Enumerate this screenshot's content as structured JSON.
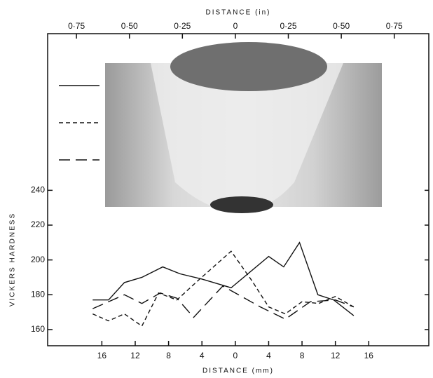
{
  "chart_data": {
    "type": "line",
    "x_label": "DISTANCE (mm)",
    "x2_label": "DISTANCE (in)",
    "y_label": "VICKERS HARDNESS",
    "xlim": [
      -22.5,
      23.2
    ],
    "xticks": [
      {
        "value": -16,
        "label": "16"
      },
      {
        "value": -12,
        "label": "12"
      },
      {
        "value": -8,
        "label": "8"
      },
      {
        "value": -4,
        "label": "4"
      },
      0,
      4,
      8,
      12,
      16
    ],
    "x2lim": [
      -0.886,
      0.913
    ],
    "x2ticks": [
      {
        "value": -0.75,
        "label": "0·75"
      },
      {
        "value": -0.5,
        "label": "0·50"
      },
      {
        "value": -0.25,
        "label": "0·25"
      },
      0,
      {
        "value": 0.25,
        "label": "0·25"
      },
      {
        "value": 0.5,
        "label": "0·50"
      },
      {
        "value": 0.75,
        "label": "0·75"
      }
    ],
    "ylim": [
      150.7,
      330
    ],
    "yticks": [
      160,
      180,
      200,
      220,
      240
    ],
    "series": [
      {
        "color": "#111111",
        "dash": "solid",
        "x": [
          -17.1,
          -15.2,
          -13.3,
          -11.2,
          -8.7,
          -6.6,
          -4.0,
          -0.5,
          4.0,
          5.8,
          7.7,
          9.9,
          11.8,
          14.2
        ],
        "values": [
          177,
          177,
          187,
          190,
          196,
          192,
          189,
          184,
          202,
          196,
          210,
          180,
          177,
          168
        ]
      },
      {
        "color": "#111111",
        "dash": "short",
        "x": [
          -17.1,
          -15.2,
          -13.3,
          -11.2,
          -9.2,
          -7.0,
          -4.5,
          -0.5,
          2.0,
          4.0,
          6.0,
          8.0,
          10.0,
          12.0,
          14.2
        ],
        "values": [
          169,
          165,
          169,
          162,
          181,
          177,
          188,
          205,
          188,
          173,
          169,
          176,
          175,
          179,
          173
        ]
      },
      {
        "color": "#111111",
        "dash": "long",
        "x": [
          -17.1,
          -15.2,
          -13.3,
          -11.2,
          -9.0,
          -7.0,
          -5.0,
          -1.5,
          0.0,
          3.0,
          6.0,
          9.0,
          12.0,
          14.2
        ],
        "values": [
          172,
          176,
          180,
          175,
          181,
          178,
          167,
          185,
          181,
          173,
          166,
          176,
          177,
          173
        ]
      }
    ]
  }
}
